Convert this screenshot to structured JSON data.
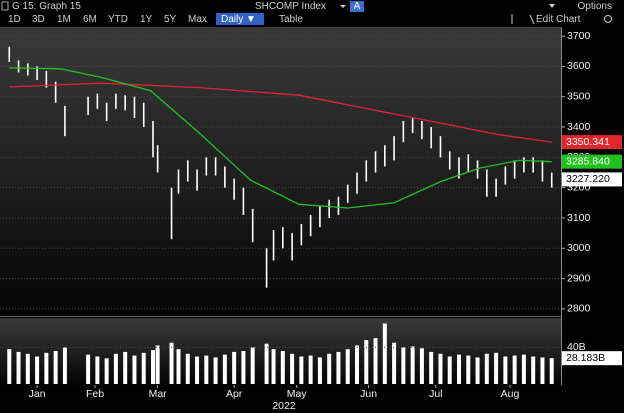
{
  "toolbar": {
    "title": "G 15: Graph 15",
    "security": "SHCOMP Index",
    "source": "A",
    "options": "Options",
    "buttons": [
      "1D",
      "3D",
      "1M",
      "6M",
      "YTD",
      "1Y",
      "5Y",
      "Max"
    ],
    "interval": "Daily ▼",
    "table": "Table",
    "edit": "Edit Chart"
  },
  "chart_data": {
    "type": "hilo",
    "xlabel": "2022",
    "xlim": [
      0,
      242
    ],
    "xticks": [
      {
        "value": 16,
        "label": "Jan"
      },
      {
        "value": 41,
        "label": "Feb"
      },
      {
        "value": 68,
        "label": "Mar"
      },
      {
        "value": 101,
        "label": "Apr"
      },
      {
        "value": 128,
        "label": "May"
      },
      {
        "value": 159,
        "label": "Jun"
      },
      {
        "value": 188,
        "label": "Jul"
      },
      {
        "value": 220,
        "label": "Aug"
      }
    ],
    "ylim": [
      2780,
      3730
    ],
    "yticks": [
      2800,
      2900,
      3000,
      3100,
      3200,
      3300,
      3400,
      3500,
      3600,
      3700
    ],
    "grid": true,
    "price": {
      "color": "#ffffff",
      "x": [
        4,
        8,
        12,
        16,
        20,
        24,
        28,
        38,
        42,
        46,
        50,
        54,
        58,
        62,
        66,
        68,
        74,
        77,
        81,
        85,
        89,
        93,
        97,
        101,
        105,
        109,
        115,
        118,
        122,
        126,
        130,
        134,
        138,
        142,
        146,
        150,
        154,
        158,
        162,
        166,
        170,
        174,
        178,
        182,
        186,
        190,
        194,
        198,
        202,
        206,
        210,
        214,
        218,
        222,
        226,
        230,
        234,
        238
      ],
      "high": [
        3665,
        3620,
        3610,
        3600,
        3585,
        3550,
        3470,
        3500,
        3510,
        3480,
        3510,
        3505,
        3500,
        3480,
        3420,
        3340,
        3200,
        3260,
        3290,
        3260,
        3300,
        3300,
        3270,
        3230,
        3200,
        3130,
        3000,
        3060,
        3070,
        3050,
        3080,
        3110,
        3140,
        3160,
        3170,
        3210,
        3250,
        3290,
        3320,
        3340,
        3370,
        3420,
        3430,
        3420,
        3400,
        3370,
        3320,
        3300,
        3310,
        3290,
        3260,
        3230,
        3270,
        3290,
        3300,
        3300,
        3290,
        3250
      ],
      "low": [
        3615,
        3580,
        3570,
        3555,
        3530,
        3480,
        3370,
        3440,
        3460,
        3420,
        3460,
        3455,
        3430,
        3400,
        3300,
        3250,
        3030,
        3180,
        3220,
        3190,
        3240,
        3240,
        3200,
        3160,
        3110,
        3020,
        2870,
        2960,
        3000,
        2960,
        3010,
        3040,
        3070,
        3100,
        3110,
        3150,
        3180,
        3220,
        3250,
        3270,
        3290,
        3350,
        3380,
        3360,
        3330,
        3300,
        3260,
        3230,
        3250,
        3230,
        3170,
        3170,
        3210,
        3230,
        3250,
        3250,
        3220,
        3200
      ],
      "last": {
        "value": 3227.22,
        "label": "3227.220"
      }
    },
    "series": [
      {
        "color": "#e0262b",
        "x": [
          4,
          43,
          86,
          129,
          172,
          194,
          215,
          238
        ],
        "values": [
          3532,
          3545,
          3530,
          3505,
          3440,
          3407,
          3375,
          3350.341
        ],
        "last_label": "3350.341"
      },
      {
        "color": "#21c21f",
        "x": [
          4,
          26,
          43,
          65,
          86,
          108,
          129,
          150,
          170,
          190,
          207,
          224,
          238
        ],
        "values": [
          3595,
          3592,
          3565,
          3520,
          3380,
          3225,
          3145,
          3133,
          3150,
          3220,
          3265,
          3290,
          3285.84
        ],
        "last_label": "3285.840"
      }
    ],
    "volume": {
      "color": "#ffffff",
      "ylim": [
        0,
        72
      ],
      "yticks": [
        {
          "value": 40,
          "label": "40B"
        }
      ],
      "values": [
        38,
        35,
        33,
        30,
        34,
        36,
        40,
        32,
        30,
        28,
        33,
        35,
        31,
        34,
        37,
        42,
        45,
        38,
        33,
        30,
        31,
        29,
        32,
        35,
        36,
        40,
        44,
        38,
        36,
        33,
        30,
        31,
        29,
        33,
        35,
        38,
        42,
        48,
        50,
        66,
        45,
        40,
        41,
        39,
        35,
        33,
        30,
        32,
        31,
        29,
        33,
        34,
        30,
        31,
        32,
        30,
        29,
        28.183
      ],
      "last_label": "28.183B"
    }
  }
}
